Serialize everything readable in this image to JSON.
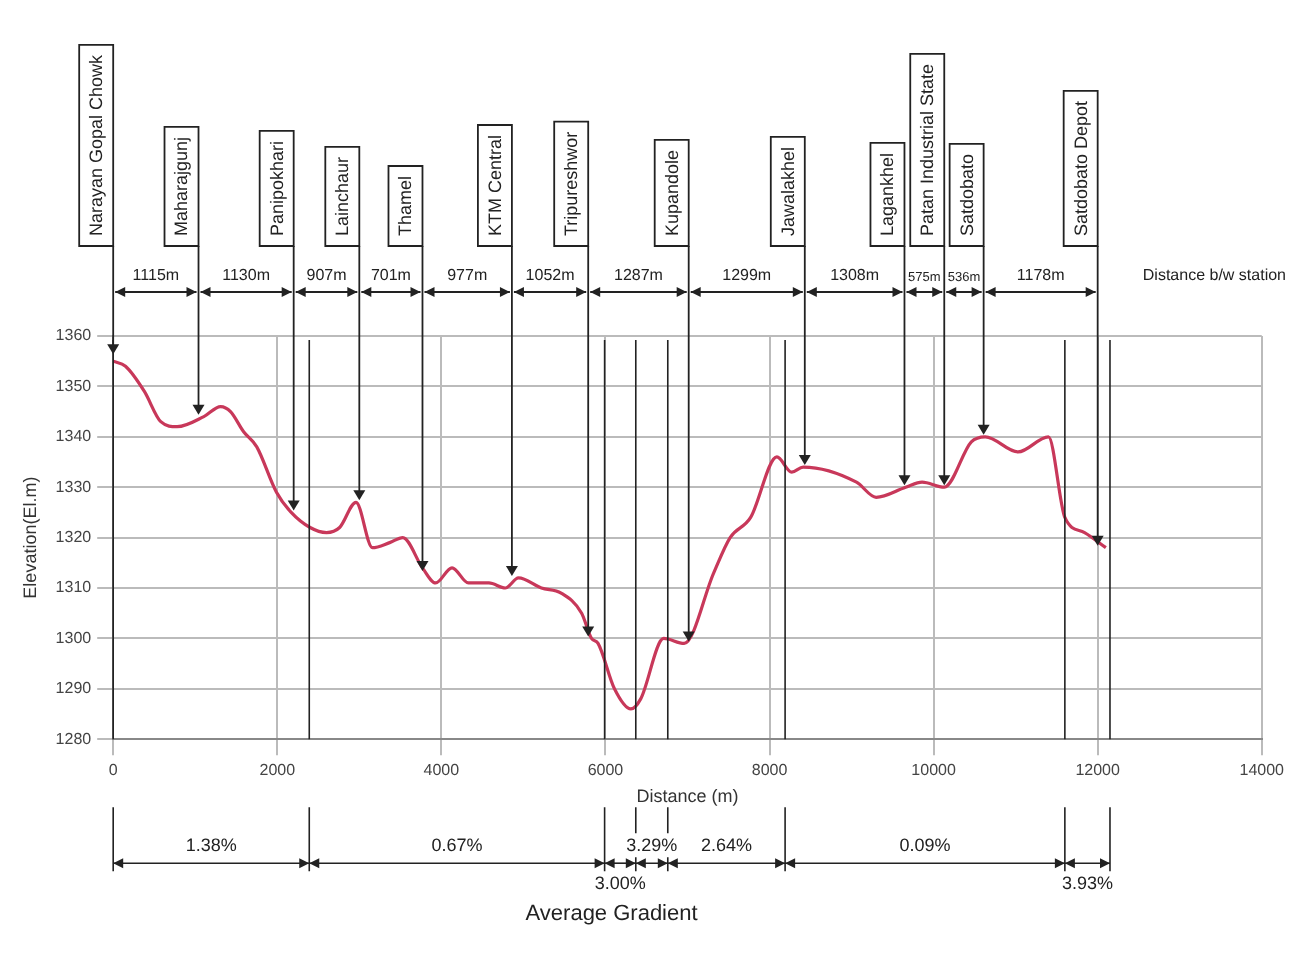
{
  "chart_data": {
    "type": "line",
    "xlabel": "Distance (m)",
    "ylabel": "Elevation(El.m)",
    "color": "#c8385a",
    "marker": "none",
    "grid": true,
    "x": [
      0,
      150,
      380,
      580,
      780,
      1105,
      1310,
      1430,
      1590,
      1750,
      1990,
      2170,
      2400,
      2600,
      2760,
      2960,
      3160,
      3370,
      3530,
      3770,
      3930,
      4130,
      4330,
      4580,
      4780,
      4940,
      5220,
      5460,
      5710,
      5830,
      5910,
      6110,
      6310,
      6430,
      6710,
      6960,
      7320,
      7520,
      7770,
      8090,
      8270,
      8410,
      9060,
      9300,
      9660,
      9860,
      10130,
      10460,
      10630,
      11030,
      11400,
      11600,
      11840,
      12100
    ],
    "values": [
      1355,
      1354,
      1349,
      1343,
      1342,
      1344,
      1346,
      1345,
      1341,
      1338,
      1329,
      1325,
      1322,
      1321,
      1322,
      1327,
      1318,
      1319,
      1320,
      1314,
      1311,
      1314,
      1311,
      1311,
      1310,
      1312,
      1310,
      1309,
      1305,
      1300,
      1299,
      1290,
      1286,
      1288,
      1300,
      1299,
      1313,
      1320,
      1324,
      1336,
      1333,
      1334,
      1331,
      1328,
      1330,
      1331,
      1330,
      1339,
      1340,
      1337,
      1340,
      1324,
      1321,
      1318
    ],
    "xlim": [
      0,
      14000
    ],
    "xticks": [
      0,
      2000,
      4000,
      6000,
      8000,
      10000,
      12000,
      14000
    ],
    "ylim": [
      1280,
      1360
    ],
    "yticks": [
      1280,
      1290,
      1300,
      1310,
      1320,
      1330,
      1340,
      1350,
      1360
    ],
    "ref_lines": [
      {
        "axis": "x",
        "value": 0
      },
      {
        "axis": "x",
        "value": 2390
      },
      {
        "axis": "x",
        "value": 5990
      },
      {
        "axis": "x",
        "value": 6370
      },
      {
        "axis": "x",
        "value": 6760
      },
      {
        "axis": "x",
        "value": 8190
      },
      {
        "axis": "x",
        "value": 11600
      },
      {
        "axis": "x",
        "value": 12150
      }
    ],
    "annotations": [
      {
        "text": "Narayan Gopal Chowk",
        "x": 0,
        "y": 1356
      },
      {
        "text": "Maharajgunj",
        "x": 1040,
        "y": 1344
      },
      {
        "text": "Panipokhari",
        "x": 2200,
        "y": 1325
      },
      {
        "text": "Lainchaur",
        "x": 3000,
        "y": 1327
      },
      {
        "text": "Thamel",
        "x": 3770,
        "y": 1313
      },
      {
        "text": "KTM Central",
        "x": 4860,
        "y": 1312
      },
      {
        "text": "Tripureshwor",
        "x": 5790,
        "y": 1300
      },
      {
        "text": "Kupandole",
        "x": 7015,
        "y": 1299
      },
      {
        "text": "Jawalakhel",
        "x": 8430,
        "y": 1334
      },
      {
        "text": "Lagankhel",
        "x": 9645,
        "y": 1330
      },
      {
        "text": "Patan Industrial State",
        "x": 10130,
        "y": 1330
      },
      {
        "text": "Satdobato",
        "x": 10610,
        "y": 1340
      },
      {
        "text": "Satdobato Depot",
        "x": 12000,
        "y": 1318
      },
      "1115m",
      "1130m",
      "907m",
      "701m",
      "977m",
      "1052m",
      "1287m",
      "1299m",
      "1308m",
      "575m",
      "536m",
      "1178m",
      "Distance b/w station",
      "1.38%",
      "0.67%",
      "3.00%",
      "3.29%",
      "2.64%",
      "0.09%",
      "3.93%",
      "Average Gradient"
    ]
  }
}
